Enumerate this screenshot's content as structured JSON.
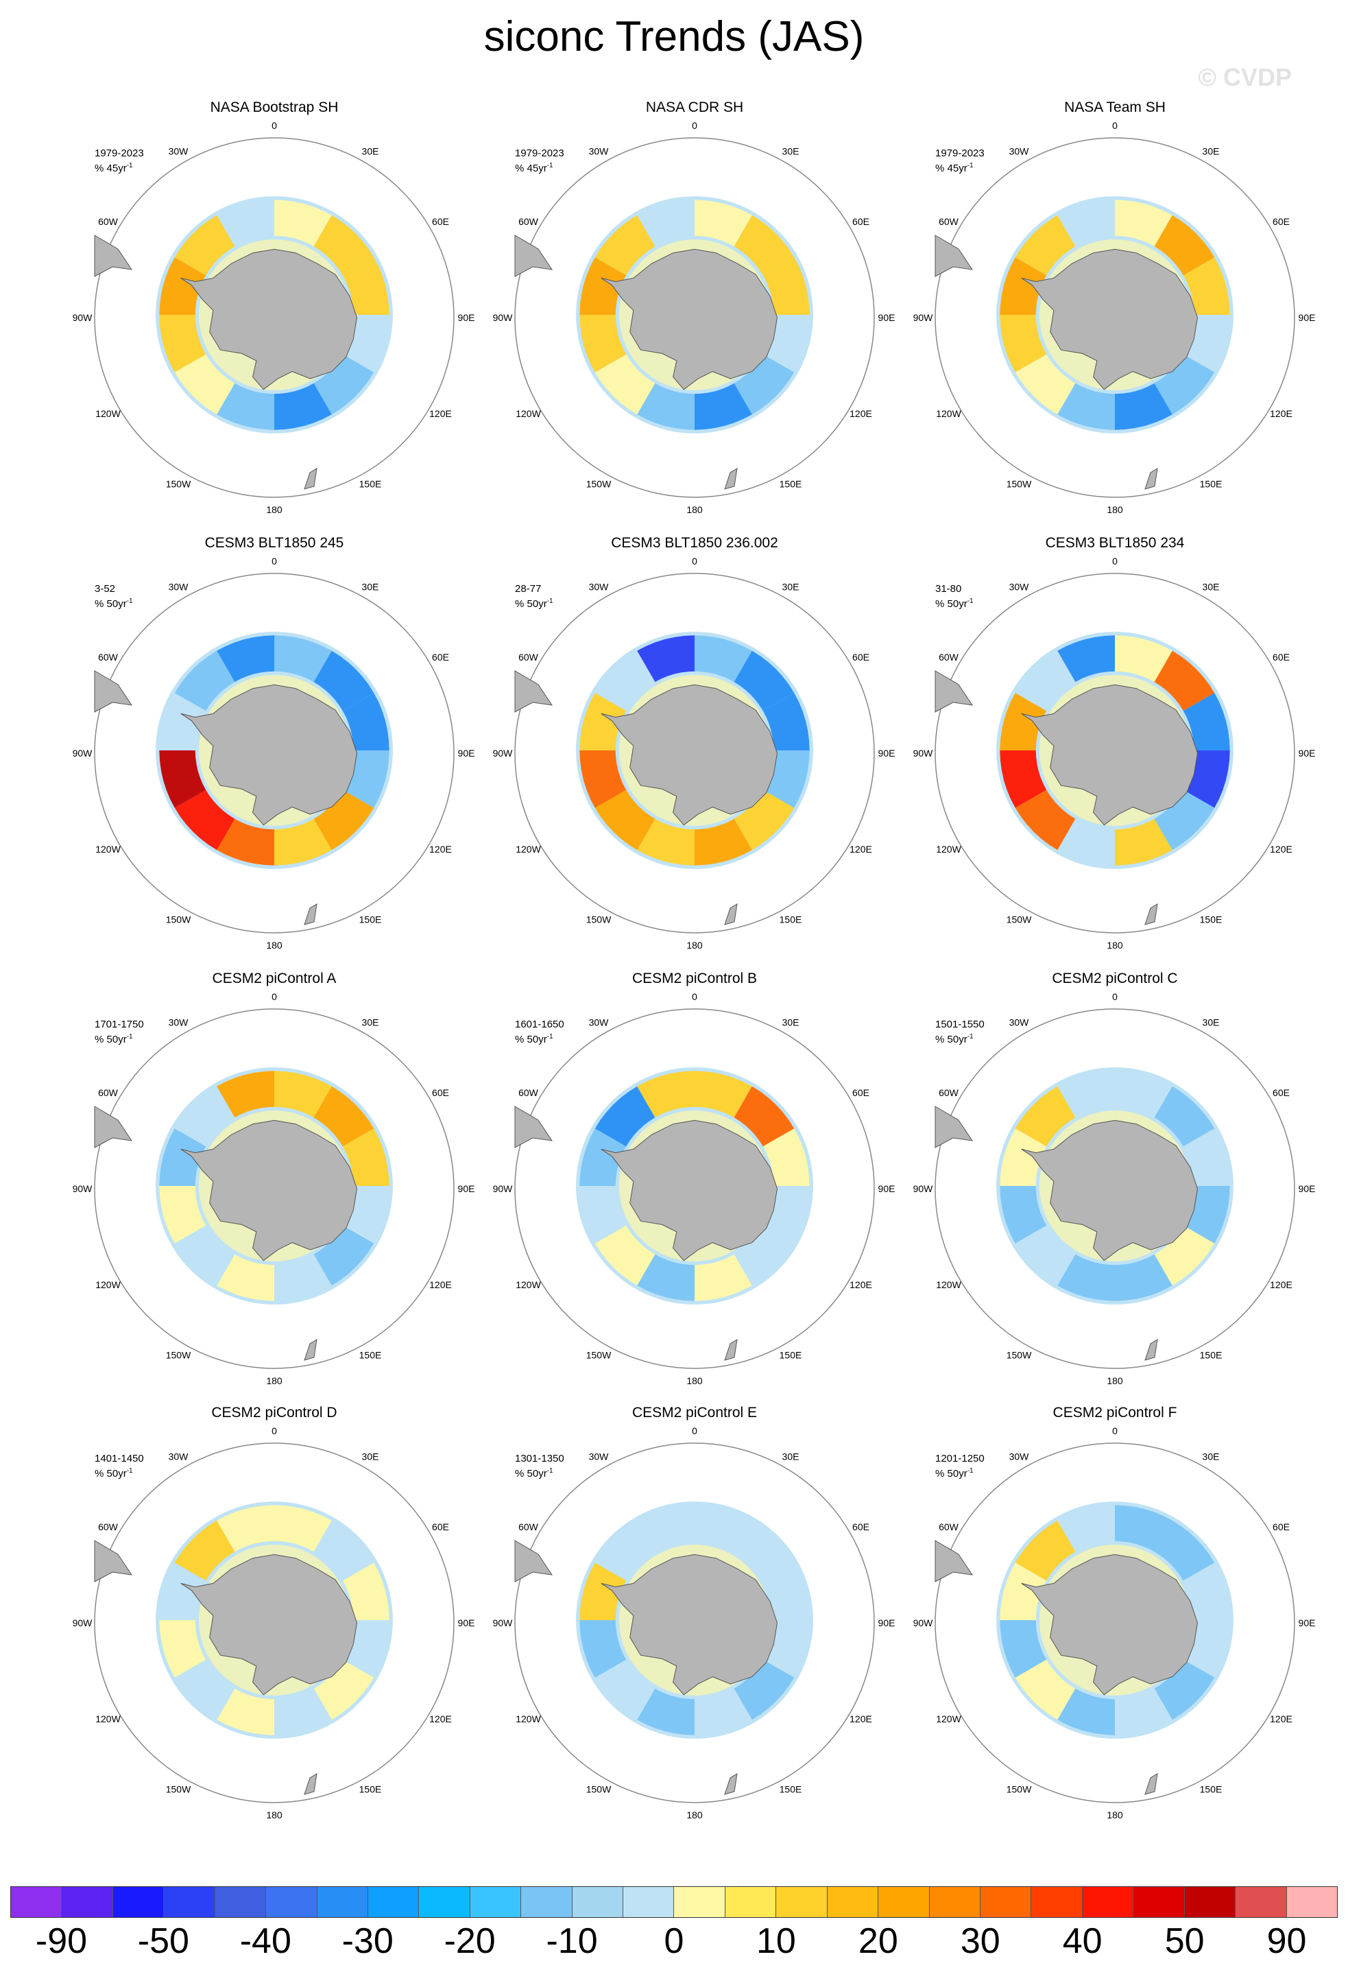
{
  "figure": {
    "title": "siconc Trends (JAS)",
    "watermark": "© CVDP"
  },
  "panel_labels": {
    "lon_ticks": [
      "0",
      "30E",
      "60E",
      "90E",
      "120E",
      "150E",
      "180",
      "150W",
      "120W",
      "90W",
      "60W",
      "30W"
    ]
  },
  "panels": [
    {
      "title": "NASA Bootstrap SH",
      "period": "1979-2023",
      "units": "% 45yr",
      "units_sup": "-1",
      "style": "obs",
      "top": "#f3b6c0",
      "pattern": [
        1,
        2,
        2,
        -1,
        -2,
        -3,
        -2,
        1,
        2,
        3,
        2,
        -1
      ]
    },
    {
      "title": "NASA CDR SH",
      "period": "1979-2023",
      "units": "% 45yr",
      "units_sup": "-1",
      "style": "obs",
      "top": "",
      "pattern": [
        1,
        2,
        2,
        -1,
        -2,
        -3,
        -2,
        1,
        2,
        3,
        2,
        -1
      ]
    },
    {
      "title": "NASA Team SH",
      "period": "1979-2023",
      "units": "% 45yr",
      "units_sup": "-1",
      "style": "obs",
      "top": "",
      "pattern": [
        1,
        3,
        2,
        -1,
        -2,
        -3,
        -2,
        1,
        2,
        3,
        2,
        -1
      ]
    },
    {
      "title": "CESM3 BLT1850 245",
      "period": "3-52",
      "units": "% 50yr",
      "units_sup": "-1",
      "style": "model",
      "top": "",
      "pattern": [
        -2,
        -3,
        -3,
        -2,
        3,
        2,
        4,
        5,
        6,
        -1,
        -2,
        -3
      ]
    },
    {
      "title": "CESM3 BLT1850 236.002",
      "period": "28-77",
      "units": "% 50yr",
      "units_sup": "-1",
      "style": "model",
      "top": "",
      "pattern": [
        -2,
        -3,
        -3,
        -2,
        2,
        3,
        2,
        3,
        4,
        2,
        -1,
        -4
      ]
    },
    {
      "title": "CESM3 BLT1850 234",
      "period": "31-80",
      "units": "% 50yr",
      "units_sup": "-1",
      "style": "model",
      "top": "",
      "pattern": [
        1,
        4,
        -3,
        -4,
        -2,
        2,
        -1,
        4,
        5,
        3,
        -1,
        -3
      ]
    },
    {
      "title": "CESM2 piControl A",
      "period": "1701-1750",
      "units": "% 50yr",
      "units_sup": "-1",
      "style": "model",
      "top": "",
      "pattern": [
        2,
        3,
        2,
        -1,
        -2,
        -1,
        1,
        -1,
        1,
        -2,
        -1,
        3
      ]
    },
    {
      "title": "CESM2 piControl B",
      "period": "1601-1650",
      "units": "% 50yr",
      "units_sup": "-1",
      "style": "model",
      "top": "",
      "pattern": [
        2,
        4,
        1,
        -1,
        -1,
        1,
        -2,
        1,
        -1,
        -2,
        -3,
        2
      ]
    },
    {
      "title": "CESM2 piControl C",
      "period": "1501-1550",
      "units": "% 50yr",
      "units_sup": "-1",
      "style": "model",
      "top": "",
      "pattern": [
        -1,
        -2,
        -1,
        -2,
        1,
        -2,
        -2,
        -1,
        -2,
        1,
        2,
        -1
      ]
    },
    {
      "title": "CESM2 piControl D",
      "period": "1401-1450",
      "units": "% 50yr",
      "units_sup": "-1",
      "style": "model",
      "top": "",
      "pattern": [
        1,
        -1,
        1,
        -1,
        1,
        -1,
        1,
        -1,
        1,
        -1,
        2,
        1
      ]
    },
    {
      "title": "CESM2 piControl E",
      "period": "1301-1350",
      "units": "% 50yr",
      "units_sup": "-1",
      "style": "model",
      "top": "",
      "pattern": [
        -1,
        -1,
        -1,
        -1,
        -2,
        -1,
        -2,
        -1,
        -2,
        2,
        -1,
        -1
      ]
    },
    {
      "title": "CESM2 piControl F",
      "period": "1201-1250",
      "units": "% 50yr",
      "units_sup": "-1",
      "style": "model",
      "top": "",
      "pattern": [
        -2,
        -2,
        -1,
        -1,
        -2,
        -1,
        -2,
        1,
        -2,
        1,
        2,
        -1
      ]
    }
  ],
  "colorbar": {
    "colors": [
      "#8f2ff0",
      "#5c23f0",
      "#1a1aff",
      "#2c40f5",
      "#3f5fe0",
      "#3a74ef",
      "#278ef5",
      "#0f9fff",
      "#0abaff",
      "#3ac4ff",
      "#7ac4f5",
      "#a5d6f0",
      "#bfe2f5",
      "#fff8a6",
      "#ffea55",
      "#ffd12a",
      "#ffbb10",
      "#ffa500",
      "#ff8a00",
      "#ff6700",
      "#ff3e00",
      "#ff1500",
      "#de0000",
      "#c10000",
      "#e05050",
      "#ffb3b3"
    ],
    "labels": [
      "-90",
      "-50",
      "-40",
      "-30",
      "-20",
      "-10",
      "0",
      "10",
      "20",
      "30",
      "40",
      "50",
      "90"
    ]
  }
}
